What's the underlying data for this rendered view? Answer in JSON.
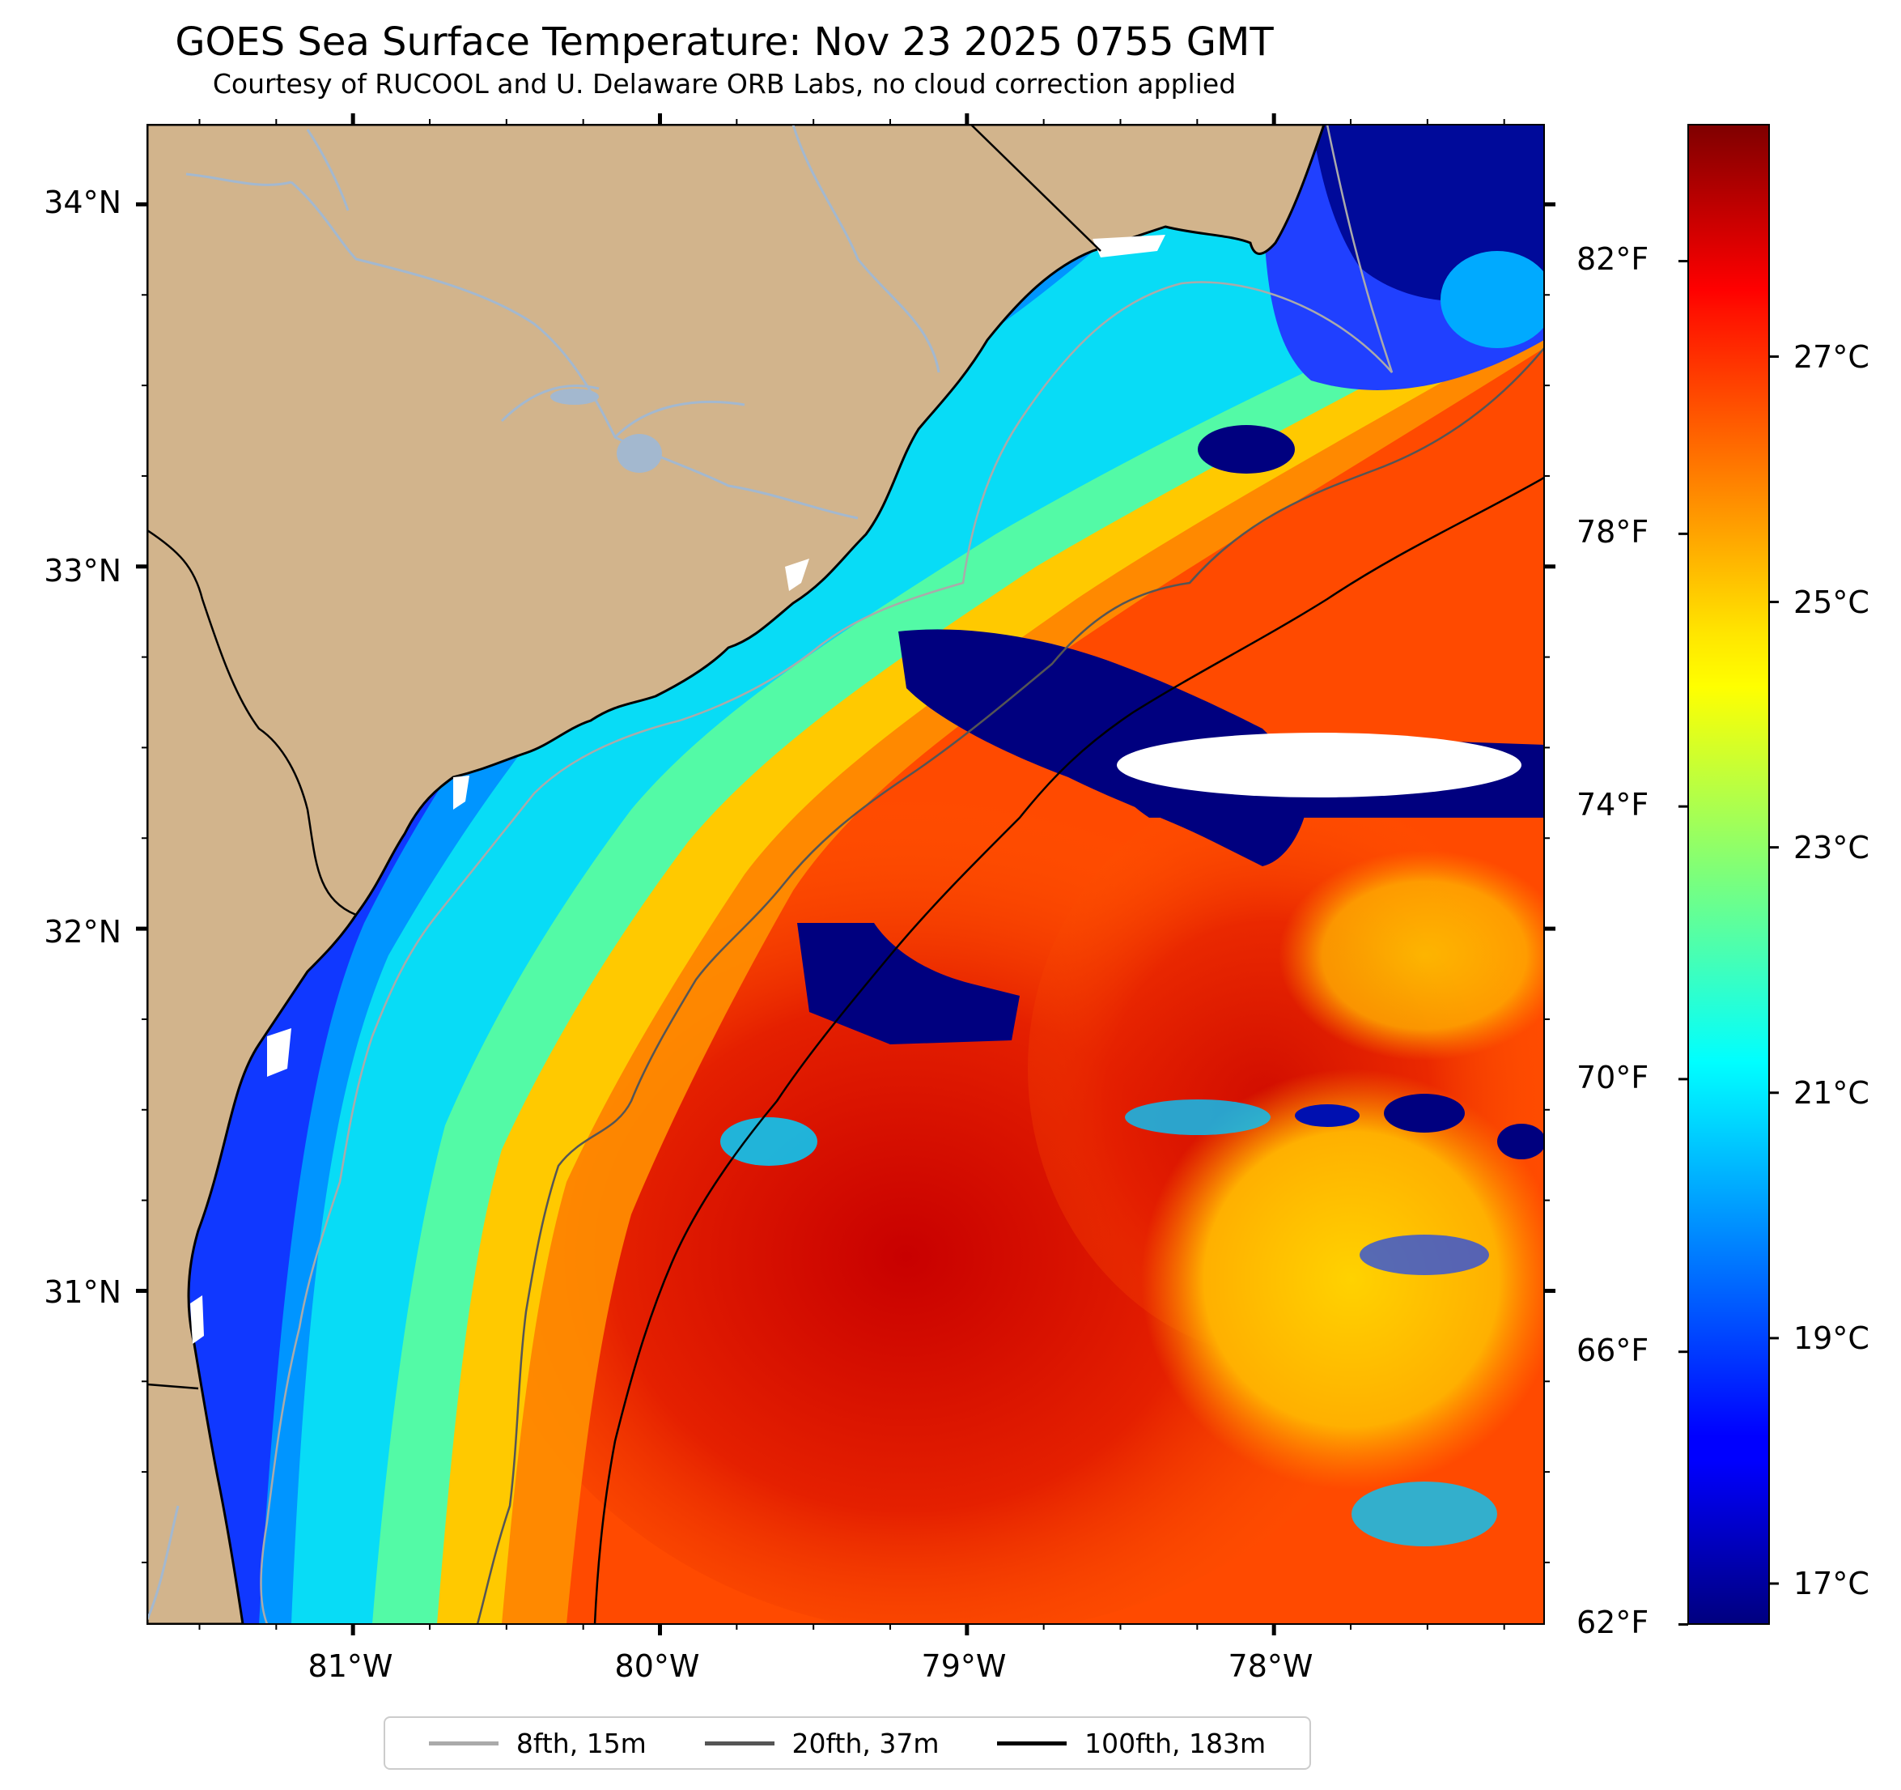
{
  "title": "GOES Sea Surface Temperature: Nov 23 2025 0755 GMT",
  "subtitle": "Courtesy of RUCOOL and U. Delaware ORB Labs, no cloud correction applied",
  "map": {
    "extent": {
      "lon_min": -81.67,
      "lon_max": -77.12,
      "lat_min": 30.08,
      "lat_max": 34.22
    },
    "land_color": "#d2b48c",
    "river_color": "#a3b8cf",
    "cloud_mask_color": "#ffffff",
    "lat_ticks": [
      {
        "value": 34,
        "label": "34°N"
      },
      {
        "value": 33,
        "label": "33°N"
      },
      {
        "value": 32,
        "label": "32°N"
      },
      {
        "value": 31,
        "label": "31°N"
      }
    ],
    "lon_ticks": [
      {
        "value": -81,
        "label": "81°W"
      },
      {
        "value": -80,
        "label": "80°W"
      },
      {
        "value": -79,
        "label": "79°W"
      },
      {
        "value": -78,
        "label": "78°W"
      }
    ]
  },
  "colorbar": {
    "colormap": "jet",
    "celsius_range": [
      16.67,
      28.89
    ],
    "fahrenheit_labels": [
      {
        "value": 62,
        "label": "62°F"
      },
      {
        "value": 66,
        "label": "66°F"
      },
      {
        "value": 70,
        "label": "70°F"
      },
      {
        "value": 74,
        "label": "74°F"
      },
      {
        "value": 78,
        "label": "78°F"
      },
      {
        "value": 82,
        "label": "82°F"
      }
    ],
    "celsius_labels": [
      {
        "value": 17,
        "label": "17°C"
      },
      {
        "value": 19,
        "label": "19°C"
      },
      {
        "value": 21,
        "label": "21°C"
      },
      {
        "value": 23,
        "label": "23°C"
      },
      {
        "value": 25,
        "label": "25°C"
      },
      {
        "value": 27,
        "label": "27°C"
      }
    ]
  },
  "legend": {
    "placement": "bottom-center",
    "items": [
      {
        "label": "8fth, 15m",
        "color": "#aaaaaa"
      },
      {
        "label": "20fth, 37m",
        "color": "#555555"
      },
      {
        "label": "100fth, 183m",
        "color": "#000000"
      }
    ]
  }
}
